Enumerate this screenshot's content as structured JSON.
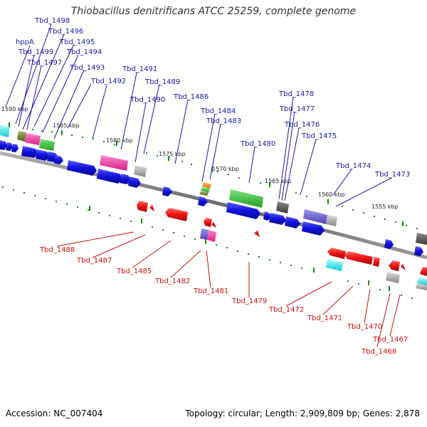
{
  "title": "Thiobacillus denitrificans ATCC 25259, complete genome",
  "footer": {
    "accession": "Accession: NC_007404",
    "summary": "Topology: circular; Length: 2,909,809 bp; Genes: 2,878"
  },
  "colors": {
    "forward": "#1010dd",
    "reverse": "#ee1111",
    "backbone": "#808080",
    "tick": "#1a8a1a",
    "label_forward": "#1a1aa8",
    "label_reverse": "#cc1111"
  },
  "kbp_labels": [
    "1590 kbp",
    "1585 kbp",
    "1580 kbp",
    "1575 kbp",
    "1570 kbp",
    "1565 kbp",
    "1560 kbp",
    "1555 kbp"
  ],
  "top_labels": [
    "Tbd_1498",
    "Tbd_1496",
    "hppA",
    "Tbd_1495",
    "Tbd_1499",
    "Tbd_1494",
    "Tbd_1497",
    "Tbd_1493",
    "Tbd_1491",
    "Tbd_1492",
    "Tbd_1489",
    "Tbd_1490",
    "Tbd_1486",
    "Tbd_1478",
    "Tbd_1484",
    "Tbd_1477",
    "Tbd_1483",
    "Tbd_1476",
    "Tbd_1475",
    "Tbd_1480",
    "Tbd_1474",
    "Tbd_1473"
  ],
  "bottom_labels": [
    "Tbd_1488",
    "Tbd_1487",
    "Tbd_1485",
    "Tbd_1482",
    "Tbd_1481",
    "Tbd_1479",
    "Tbd_1472",
    "Tbd_1471",
    "Tbd_1470",
    "Tbd_1467",
    "Tbd_1468"
  ]
}
